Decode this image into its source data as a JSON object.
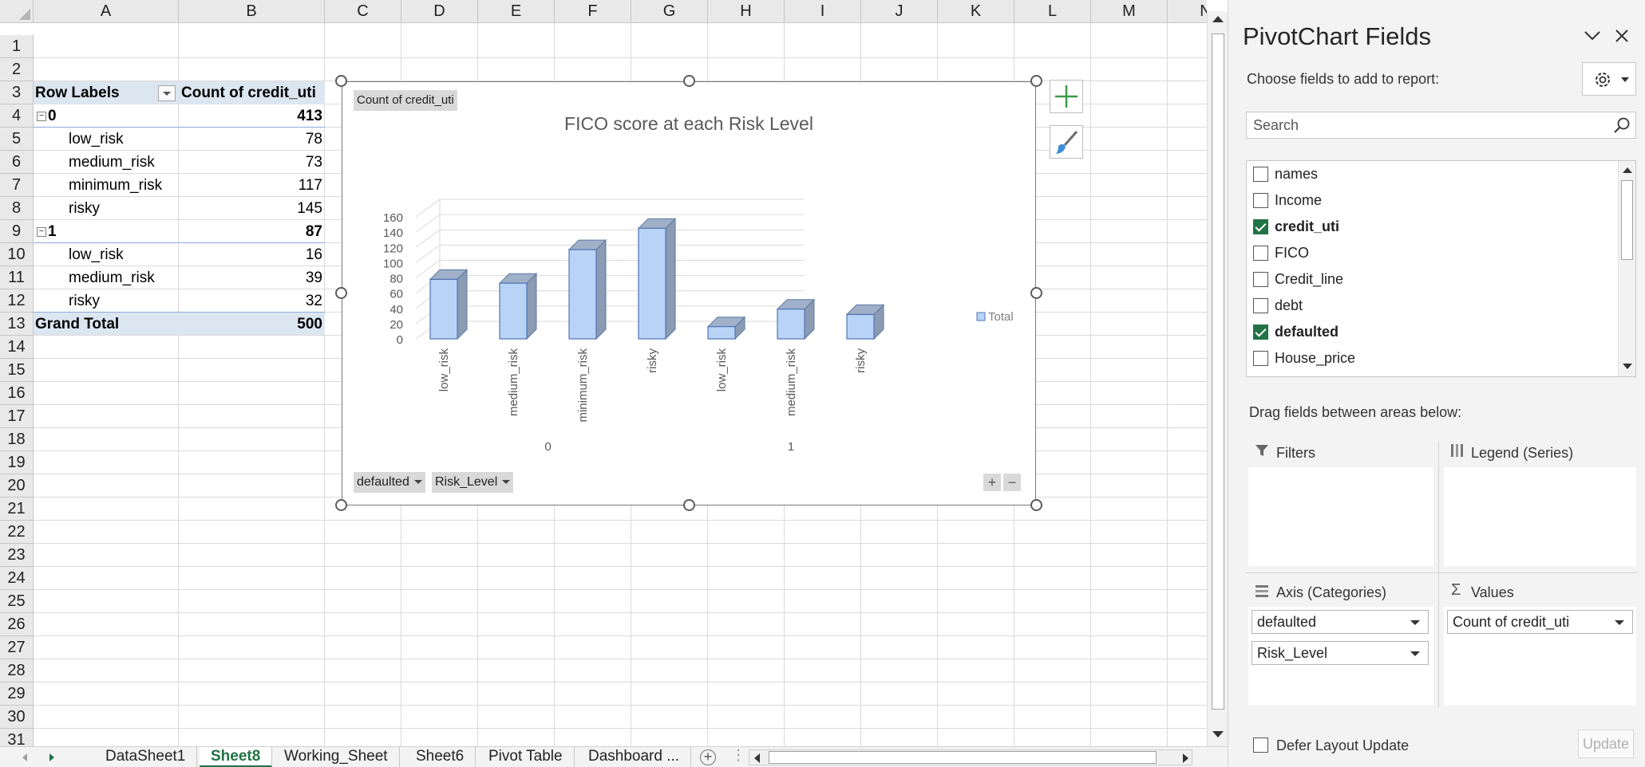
{
  "grid": {
    "columns": [
      "A",
      "B",
      "C",
      "D",
      "E",
      "F",
      "G",
      "H",
      "I",
      "J",
      "K",
      "L",
      "M",
      "N"
    ],
    "rows": [
      "1",
      "2",
      "3",
      "4",
      "5",
      "6",
      "7",
      "8",
      "9",
      "10",
      "11",
      "12",
      "13",
      "14",
      "15",
      "16",
      "17",
      "18",
      "19",
      "20",
      "21",
      "22",
      "23",
      "24",
      "25",
      "26",
      "27",
      "28",
      "29",
      "30",
      "31"
    ]
  },
  "pivot_table": {
    "header_row_labels": "Row Labels",
    "header_value": "Count of credit_uti",
    "rows": [
      {
        "label": "0",
        "value": "413",
        "level": 0
      },
      {
        "label": "low_risk",
        "value": "78",
        "level": 1
      },
      {
        "label": "medium_risk",
        "value": "73",
        "level": 1
      },
      {
        "label": "minimum_risk",
        "value": "117",
        "level": 1
      },
      {
        "label": "risky",
        "value": "145",
        "level": 1
      },
      {
        "label": "1",
        "value": "87",
        "level": 0
      },
      {
        "label": "low_risk",
        "value": "16",
        "level": 1
      },
      {
        "label": "medium_risk",
        "value": "39",
        "level": 1
      },
      {
        "label": "risky",
        "value": "32",
        "level": 1
      }
    ],
    "grand_total_label": "Grand Total",
    "grand_total_value": "500",
    "collapse_symbol": "−"
  },
  "chart_data": {
    "type": "bar",
    "title": "FICO score at each Risk Level",
    "value_field_button": "Count of credit_uti",
    "categories": [
      "low_risk",
      "medium_risk",
      "minimum_risk",
      "risky",
      "low_risk",
      "medium_risk",
      "risky"
    ],
    "groups": [
      {
        "name": "0",
        "size": 4
      },
      {
        "name": "1",
        "size": 3
      }
    ],
    "series": [
      {
        "name": "Total",
        "values": [
          78,
          73,
          117,
          145,
          16,
          39,
          32
        ]
      }
    ],
    "ylim": [
      0,
      160
    ],
    "yticks": [
      0,
      20,
      40,
      60,
      80,
      100,
      120,
      140,
      160
    ],
    "legend": "right",
    "axis_buttons": [
      "defaulted",
      "Risk_Level"
    ],
    "bar_color": "#b9d3f7"
  },
  "chart_tools": {
    "plus": "+",
    "minus": "−"
  },
  "sheet_tabs": [
    "DataSheet1",
    "Sheet8",
    "Working_Sheet",
    "Sheet6",
    "Pivot Table",
    "Dashboard ..."
  ],
  "active_tab": "Sheet8",
  "pane": {
    "title": "PivotChart Fields",
    "choose_label": "Choose fields to add to report:",
    "search_placeholder": "Search",
    "fields": [
      {
        "name": "names",
        "checked": false
      },
      {
        "name": "Income",
        "checked": false
      },
      {
        "name": "credit_uti",
        "checked": true
      },
      {
        "name": "FICO",
        "checked": false
      },
      {
        "name": "Credit_line",
        "checked": false
      },
      {
        "name": "debt",
        "checked": false
      },
      {
        "name": "defaulted",
        "checked": true
      },
      {
        "name": "House_price",
        "checked": false
      }
    ],
    "drag_label": "Drag fields between areas below:",
    "areas": {
      "filters": "Filters",
      "legend": "Legend (Series)",
      "axis": "Axis (Categories)",
      "values": "Values",
      "axis_fields": [
        "defaulted",
        "Risk_Level"
      ],
      "value_fields": [
        "Count of credit_uti"
      ]
    },
    "defer_label": "Defer Layout Update",
    "update_label": "Update"
  }
}
